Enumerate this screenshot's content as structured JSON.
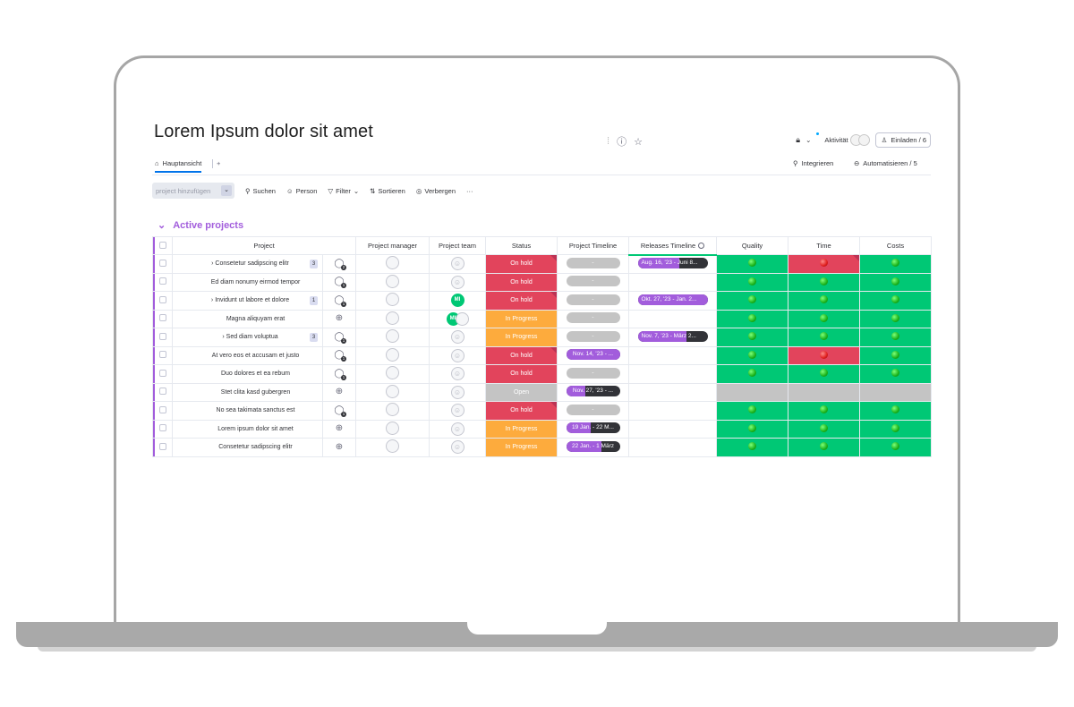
{
  "board": {
    "title": "Lorem Ipsum dolor sit amet",
    "activity_label": "Aktivität",
    "invite_label": "Einladen / 6"
  },
  "views": {
    "main_tab": "Hauptansicht",
    "add_tab": "+",
    "integrate_label": "Integrieren",
    "automate_label": "Automatisieren / 5"
  },
  "toolbar": {
    "new_item_placeholder": "project hinzufügen",
    "search": "Suchen",
    "person": "Person",
    "filter": "Filter",
    "sort": "Sortieren",
    "hide": "Verbergen",
    "more": "···"
  },
  "group": {
    "title": "Active projects",
    "columns": [
      "Project",
      "Project manager",
      "Project team",
      "Status",
      "Project Timeline",
      "Releases Timeline",
      "Quality",
      "Time",
      "Costs"
    ]
  },
  "rows": [
    {
      "name": "Consetetur sadipscing elitr",
      "expand": true,
      "subitems": "3",
      "updates": "2",
      "team": "",
      "status": "On hold",
      "status_kind": "hold",
      "status_note": true,
      "timeline": "-",
      "timeline_fill": 0,
      "release": "Aug. 16, '23 - Juni 8...",
      "release_fill": 0.6,
      "quality": "green",
      "time": "red",
      "costs": "green"
    },
    {
      "name": "Ed diam nonumy eirmod tempor",
      "expand": false,
      "subitems": "",
      "updates": "1",
      "team": "",
      "status": "On hold",
      "status_kind": "hold",
      "status_note": false,
      "timeline": "-",
      "timeline_fill": 0,
      "release": "",
      "release_fill": 0,
      "quality": "green",
      "time": "green",
      "costs": "green"
    },
    {
      "name": "Invidunt ut labore et dolore",
      "expand": true,
      "subitems": "1",
      "updates": "1",
      "team": "MI",
      "status": "On hold",
      "status_kind": "hold",
      "status_note": true,
      "timeline": "-",
      "timeline_fill": 0,
      "release": "Okt. 27, '23 - Jan. 2...",
      "release_fill": 1,
      "quality": "green",
      "time": "green",
      "costs": "green"
    },
    {
      "name": "Magna aliquyam erat",
      "expand": false,
      "subitems": "",
      "updates": "",
      "team": "MI+",
      "status": "In Progress",
      "status_kind": "prog",
      "status_note": false,
      "timeline": "-",
      "timeline_fill": 0,
      "release": "",
      "release_fill": 0,
      "quality": "green",
      "time": "green",
      "costs": "green"
    },
    {
      "name": "Sed diam voluptua",
      "expand": true,
      "subitems": "3",
      "updates": "1",
      "team": "",
      "status": "In Progress",
      "status_kind": "prog",
      "status_note": false,
      "timeline": "-",
      "timeline_fill": 0,
      "release": "Nov. 7, '23 - März 2...",
      "release_fill": 0.7,
      "quality": "green",
      "time": "green",
      "costs": "green"
    },
    {
      "name": "At vero eos et accusam et justo",
      "expand": false,
      "subitems": "",
      "updates": "1",
      "team": "",
      "status": "On hold",
      "status_kind": "hold",
      "status_note": true,
      "timeline": "Nov. 14, '23 - ...",
      "timeline_fill": 1,
      "release": "",
      "release_fill": 0,
      "quality": "green",
      "time": "red",
      "costs": "green"
    },
    {
      "name": "Duo dolores et ea rebum",
      "expand": false,
      "subitems": "",
      "updates": "1",
      "team": "",
      "status": "On hold",
      "status_kind": "hold",
      "status_note": false,
      "timeline": "-",
      "timeline_fill": 0,
      "release": "",
      "release_fill": 0,
      "quality": "green",
      "time": "green",
      "costs": "green"
    },
    {
      "name": "Stet clita kasd gubergren",
      "expand": false,
      "subitems": "",
      "updates": "",
      "team": "",
      "status": "Open",
      "status_kind": "open",
      "status_note": false,
      "timeline": "Nov. 27, '23 - ...",
      "timeline_fill": 0.35,
      "release": "",
      "release_fill": 0,
      "quality": "grey",
      "time": "grey",
      "costs": "grey"
    },
    {
      "name": "No sea takimata sanctus est",
      "expand": false,
      "subitems": "",
      "updates": "1",
      "team": "",
      "status": "On hold",
      "status_kind": "hold",
      "status_note": true,
      "timeline": "-",
      "timeline_fill": 0,
      "release": "",
      "release_fill": 0,
      "quality": "green",
      "time": "green",
      "costs": "green"
    },
    {
      "name": "Lorem ipsum dolor sit amet",
      "expand": false,
      "subitems": "",
      "updates": "",
      "team": "",
      "status": "In Progress",
      "status_kind": "prog",
      "status_note": false,
      "timeline": "19 Jan. - 22 M...",
      "timeline_fill": 0.45,
      "release": "",
      "release_fill": 0,
      "quality": "green",
      "time": "green",
      "costs": "green"
    },
    {
      "name": "Consetetur sadipscing elitr",
      "expand": false,
      "subitems": "",
      "updates": "",
      "team": "",
      "status": "In Progress",
      "status_kind": "prog",
      "status_note": false,
      "timeline": "22 Jan. - 1 März",
      "timeline_fill": 0.65,
      "release": "",
      "release_fill": 0,
      "quality": "green",
      "time": "green",
      "costs": "green"
    }
  ]
}
